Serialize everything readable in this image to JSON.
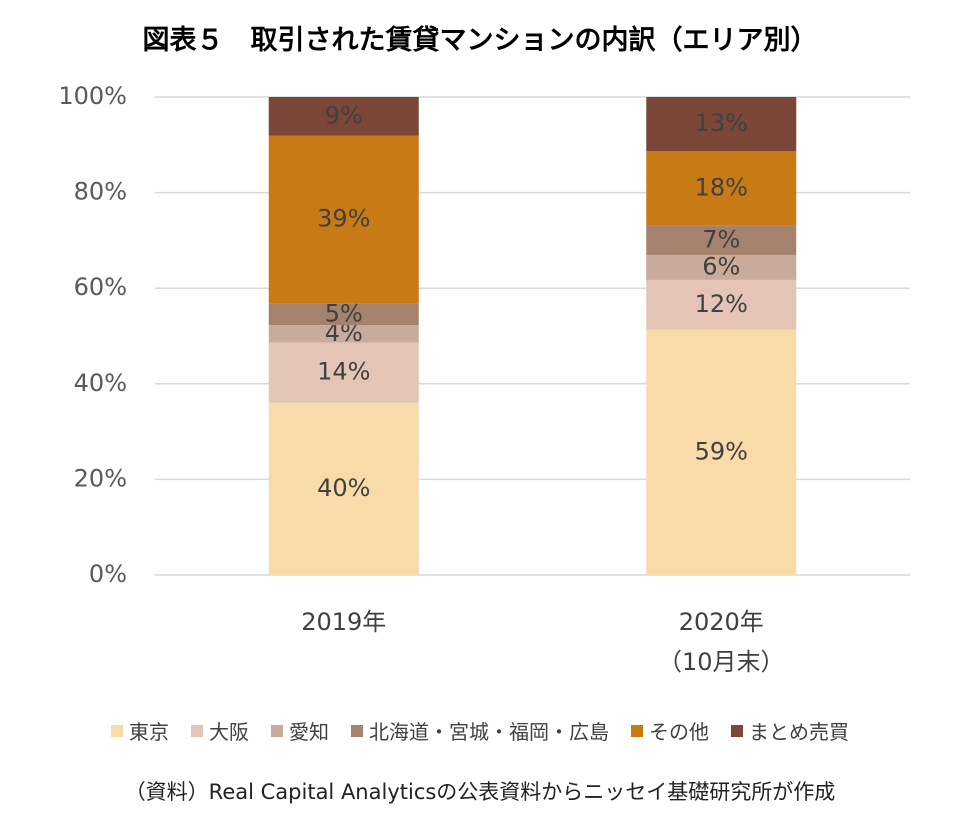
{
  "chart_data": {
    "type": "bar",
    "stacked": "percent",
    "title": "図表５　取引された賃貸マンションの内訳（エリア別）",
    "categories": [
      "2019年",
      "2020年\n（10月末）"
    ],
    "series": [
      {
        "name": "東京",
        "color": "#f9dba9",
        "values": [
          40,
          59
        ],
        "value_labels": [
          "40%",
          "59%"
        ]
      },
      {
        "name": "大阪",
        "color": "#e3c4b5",
        "values": [
          14,
          12
        ],
        "value_labels": [
          "14%",
          "12%"
        ]
      },
      {
        "name": "愛知",
        "color": "#c9ab9b",
        "values": [
          4,
          6
        ],
        "value_labels": [
          "4%",
          "6%"
        ]
      },
      {
        "name": "北海道・宮城・福岡・広島",
        "color": "#a5826d",
        "values": [
          5,
          7
        ],
        "value_labels": [
          "5%",
          "7%"
        ]
      },
      {
        "name": "その他",
        "color": "#c87b14",
        "values": [
          39,
          18
        ],
        "value_labels": [
          "39%",
          "18%"
        ]
      },
      {
        "name": "まとめ売買",
        "color": "#7c4638",
        "values": [
          9,
          13
        ],
        "value_labels": [
          "9%",
          "13%"
        ]
      }
    ],
    "ylim": [
      0,
      100
    ],
    "yticks": [
      {
        "value": 0,
        "label": "0%"
      },
      {
        "value": 20,
        "label": "20%"
      },
      {
        "value": 40,
        "label": "40%"
      },
      {
        "value": 60,
        "label": "60%"
      },
      {
        "value": 80,
        "label": "80%"
      },
      {
        "value": 100,
        "label": "100%"
      }
    ],
    "grid": true,
    "source": "（資料）Real Capital Analyticsの公表資料からニッセイ基礎研究所が作成"
  }
}
